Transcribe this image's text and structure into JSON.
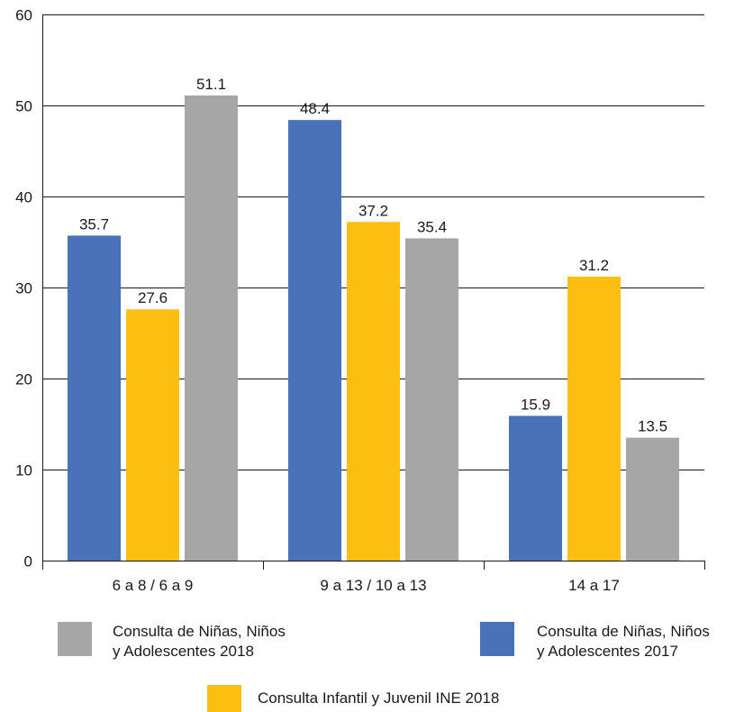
{
  "chart_data": {
    "type": "bar",
    "categories": [
      "6 a 8 / 6 a 9",
      "9 a 13 / 10 a 13",
      "14 a 17"
    ],
    "series": [
      {
        "name": "Consulta de Niñas, Niños y Adolescentes 2017",
        "color": "#4a72b8",
        "values": [
          35.7,
          48.4,
          15.9
        ]
      },
      {
        "name": "Consulta Infantil y Juvenil INE 2018",
        "color": "#fcbe10",
        "values": [
          27.6,
          37.2,
          31.2
        ]
      },
      {
        "name": "Consulta de Niñas, Niños y Adolescentes 2018",
        "color": "#a6a6a6",
        "values": [
          51.1,
          35.4,
          13.5
        ]
      }
    ],
    "ylim": [
      0,
      60
    ],
    "yticks": [
      0,
      10,
      20,
      30,
      40,
      50,
      60
    ],
    "grid": true,
    "legend_position": "bottom",
    "title": "",
    "xlabel": "",
    "ylabel": ""
  },
  "legend": {
    "nna2018": {
      "line1": "Consulta de Niñas, Niños",
      "line2": "y Adolescentes 2018",
      "color": "#a6a6a6"
    },
    "nna2017": {
      "line1": "Consulta de Niñas, Niños",
      "line2": "y Adolescentes 2017",
      "color": "#4a72b8"
    },
    "ine2018": {
      "line1": "Consulta Infantil y Juvenil INE 2018",
      "color": "#fcbe10"
    }
  }
}
